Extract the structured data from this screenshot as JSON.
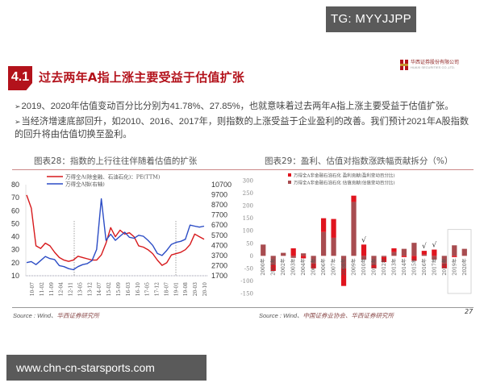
{
  "watermark_top": "TG: MYYJJPP",
  "watermark_bottom": "www.chn-cn-starsports.com",
  "header": {
    "section_number": "4.1",
    "title": "过去两年A指上涨主要受益于估值扩张",
    "logo_cn": "华西证券股份有限公司",
    "logo_en": "HUAXI SECURITIES CO.,LTD."
  },
  "bullets": [
    {
      "arrow": "➢",
      "text": "2019、2020年估值变动百分比分别为41.78%、27.85%，也就意味着过去两年A指上涨主要受益于估值扩张。"
    },
    {
      "arrow": "➢",
      "text": "当经济增速底部回升，如2010、2016、2017年，则指数的上涨受益于企业盈利的改善。我们预计2021年A股指数的回升将由估值切换至盈利。"
    }
  ],
  "left_chart": {
    "title": "图表28：指数的上行往往伴随着估值的扩张",
    "source_prefix": "Source : Wind、",
    "source_cn": "华西证券研究所"
  },
  "right_chart": {
    "title": "图表29：盈利、估值对指数涨跌幅贡献拆分（%）",
    "source_prefix": "Source : Wind、",
    "source_cn": "中国证券业协会、华西证券研究所"
  },
  "page_number": "27",
  "chart_data": [
    {
      "type": "line",
      "title": "图表28：指数的上行往往伴随着估值的扩张",
      "x_ticks": [
        "10-07",
        "11-02",
        "11-09",
        "12-04",
        "12-11",
        "13-05",
        "13-12",
        "14-07",
        "15-02",
        "15-09",
        "16-03",
        "16-10",
        "17-05",
        "17-12",
        "18-07",
        "19-01",
        "19-08",
        "20-03",
        "20-10"
      ],
      "y_left": {
        "ticks": [
          10,
          20,
          30,
          40,
          50,
          60,
          70,
          80
        ],
        "range": [
          10,
          80
        ]
      },
      "y_right": {
        "ticks": [
          1700,
          2700,
          3700,
          4700,
          5700,
          6700,
          7700,
          8700,
          9700,
          10700
        ],
        "range": [
          1700,
          10700
        ]
      },
      "legend": [
        "万得全A(除金融、石油石化)：PE(TTM)",
        "万得全A指(右轴)"
      ],
      "series": [
        {
          "name": "万得全A(除金融、石油石化)：PE(TTM)",
          "axis": "left",
          "color": "#d7191c",
          "values": [
            72,
            62,
            33,
            31,
            35,
            33,
            28,
            24,
            22,
            21,
            22,
            25,
            24,
            23,
            22,
            22,
            26,
            35,
            47,
            40,
            45,
            42,
            43,
            40,
            33,
            32,
            30,
            27,
            22,
            18,
            20,
            26,
            27,
            28,
            30,
            34,
            42,
            40,
            38
          ]
        },
        {
          "name": "万得全A指(右轴)",
          "axis": "right",
          "color": "#2b4cc5",
          "values": [
            3000,
            3100,
            2800,
            3200,
            3600,
            3400,
            3300,
            2700,
            2600,
            2400,
            2300,
            2600,
            2800,
            2900,
            3200,
            4300,
            9300,
            5200,
            5800,
            5200,
            5600,
            6000,
            5500,
            5400,
            5700,
            5600,
            5200,
            4700,
            3900,
            3700,
            4200,
            4800,
            5000,
            5100,
            5300,
            6700,
            6600,
            6500,
            6600
          ]
        }
      ],
      "annotations": [
        "vertical dashed line near 12-11",
        "vertical dashed line near 19-01"
      ]
    },
    {
      "type": "bar",
      "stacked": true,
      "title": "图表29：盈利、估值对指数涨跌幅贡献拆分（%）",
      "categories": [
        "2000年",
        "2001年",
        "2002年",
        "2003年",
        "2004年",
        "2005年",
        "2006年",
        "2007年",
        "2008年",
        "2009年",
        "2010年",
        "2011年",
        "2012年",
        "2013年",
        "2014年",
        "2015年",
        "2016年",
        "2017年",
        "2018年",
        "2019年",
        "2020年"
      ],
      "ylim": [
        -150,
        300
      ],
      "y_ticks": [
        -150,
        -100,
        -50,
        0,
        50,
        100,
        150,
        200,
        250,
        300
      ],
      "legend": [
        "万得全A非金融石油石化 盈利贡献(盈利变动百分比)",
        "万得全A非金融石油石化 估值贡献(估值变动百分比)"
      ],
      "series": [
        {
          "name": "盈利贡献(盈利变动百分比)",
          "color": "#e0141e",
          "values": [
            0,
            -25,
            0,
            30,
            -10,
            -20,
            55,
            75,
            -70,
            25,
            45,
            -15,
            -20,
            15,
            -5,
            -20,
            15,
            25,
            -20,
            -5,
            0
          ]
        },
        {
          "name": "估值贡献(估值变动百分比)",
          "color": "#a84c50",
          "values": [
            45,
            -35,
            12,
            -8,
            10,
            -30,
            95,
            72,
            -50,
            215,
            -15,
            -35,
            -5,
            15,
            28,
            52,
            5,
            -15,
            -30,
            42,
            28
          ]
        }
      ],
      "annotations": [
        "√ above 2010年",
        "√ above 2016年",
        "√ above 2017年",
        "box around 2019年–2020年"
      ]
    }
  ]
}
